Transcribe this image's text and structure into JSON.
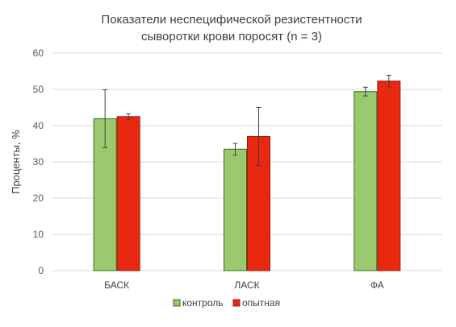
{
  "chart_data": {
    "type": "bar",
    "title_lines": [
      "Показатели неспецифической резистентности",
      "сыворотки крови поросят (n = 3)"
    ],
    "xlabel": "",
    "ylabel": "Проценты, %",
    "ylim": [
      0,
      60
    ],
    "yticks": [
      0,
      10,
      20,
      30,
      40,
      50,
      60
    ],
    "grid": true,
    "legend_position": "bottom",
    "categories": [
      "БАСК",
      "ЛАСК",
      "ФА"
    ],
    "series": [
      {
        "name": "контроль",
        "color": "#9bc96e",
        "stroke": "#3b6b1f",
        "values": [
          41.9,
          33.5,
          49.4
        ],
        "errors": [
          8.0,
          1.6,
          1.2
        ]
      },
      {
        "name": "опытная",
        "color": "#e8290f",
        "stroke": "#9c1b08",
        "values": [
          42.5,
          37.0,
          52.3
        ],
        "errors": [
          0.8,
          8.0,
          1.6
        ]
      }
    ]
  }
}
